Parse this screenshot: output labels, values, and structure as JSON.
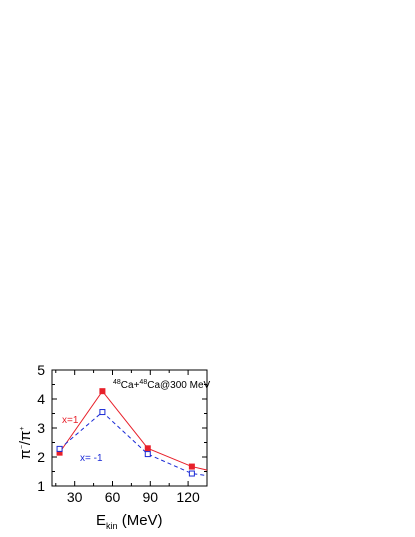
{
  "chart_data": {
    "type": "line",
    "title": "",
    "annotation": {
      "mass_a": "48",
      "elem_a": "Ca+",
      "mass_b": "48",
      "elem_b": "Ca@300 MeV"
    },
    "xlabel": {
      "main": "E",
      "sub": "kin",
      "units": " (MeV)"
    },
    "ylabel": {
      "p1": "π",
      "s1": "−",
      "p2": "/π",
      "s2": "+"
    },
    "xlim": [
      12,
      135
    ],
    "ylim": [
      1,
      5
    ],
    "xticks": [
      30,
      60,
      90,
      120
    ],
    "yticks": [
      1,
      2,
      3,
      4,
      5
    ],
    "x": [
      18,
      52,
      88,
      123,
      140
    ],
    "series": [
      {
        "name": "x=1",
        "color": "#e8202a",
        "marker": "filled-square",
        "line": "solid",
        "values": [
          2.15,
          4.27,
          2.3,
          1.67,
          1.5
        ]
      },
      {
        "name": "x= -1",
        "color": "#1a2ad6",
        "marker": "open-square",
        "line": "dashed",
        "values": [
          2.28,
          3.55,
          2.1,
          1.43,
          1.33
        ]
      }
    ]
  }
}
